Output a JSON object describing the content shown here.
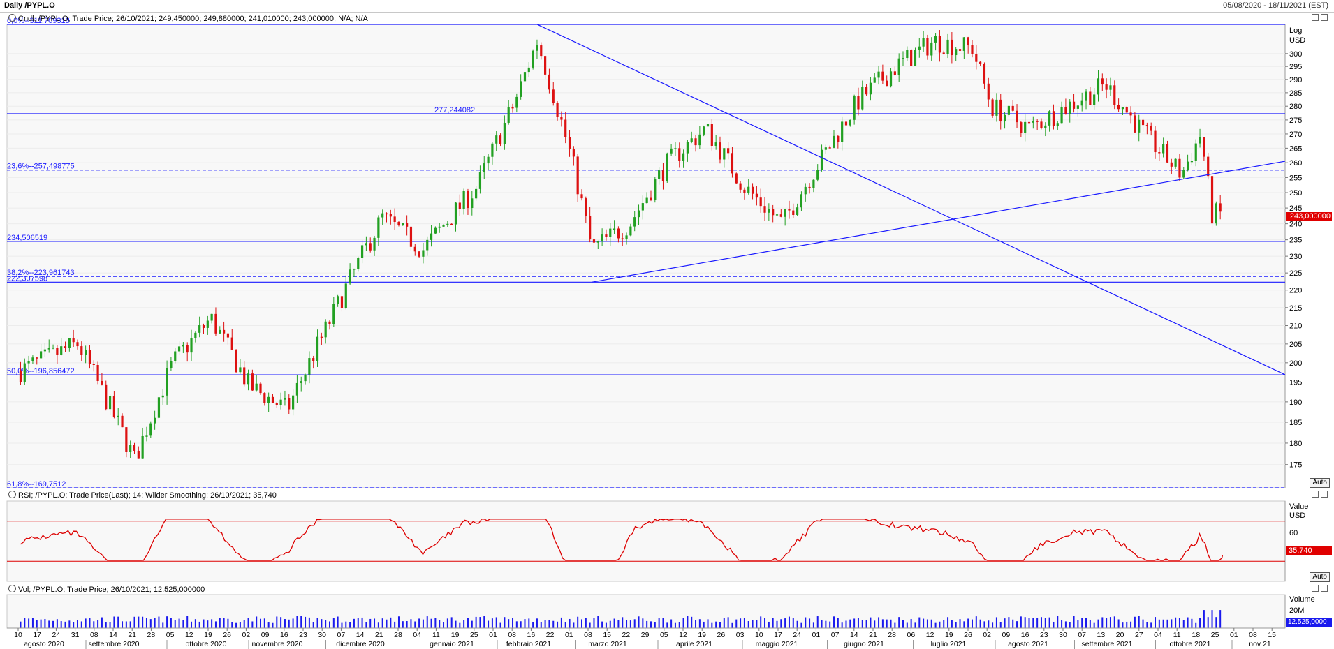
{
  "header": {
    "title": "Daily /PYPL.O",
    "date_range": "05/08/2020 - 18/11/2021 (EST)"
  },
  "price_panel": {
    "legend": "Cndl; /PYPL.O; Trade Price; 26/10/2021; 249,450000; 249,880000; 241,010000; 243,000000; N/A; N/A",
    "scale_label": "Log",
    "currency": "USD",
    "last_value_tag": "243,000000",
    "auto_label": "Auto",
    "y_ticks": [
      175,
      180,
      185,
      190,
      195,
      200,
      205,
      210,
      215,
      220,
      225,
      230,
      235,
      240,
      245,
      250,
      255,
      260,
      265,
      270,
      275,
      280,
      285,
      290,
      295,
      300
    ],
    "horizontal_levels": [
      {
        "value": 311.709318,
        "label": "0,0%--311,709318",
        "style": "solid"
      },
      {
        "value": 277.244082,
        "label": "277,244082",
        "style": "solid"
      },
      {
        "value": 257.498775,
        "label": "23,6%--257,498775",
        "style": "dashed"
      },
      {
        "value": 234.506519,
        "label": "234,506519",
        "style": "solid"
      },
      {
        "value": 223.961743,
        "label": "38,2%--223,961743",
        "style": "dashed"
      },
      {
        "value": 222.307598,
        "label": "222,307598",
        "style": "solid"
      },
      {
        "value": 196.856472,
        "label": "50,0%--196,856472",
        "style": "solid"
      },
      {
        "value": 169.7512,
        "label": "61,8%--169,7512",
        "style": "dashed"
      }
    ]
  },
  "rsi_panel": {
    "legend": "RSI; /PYPL.O; Trade Price(Last);  14; Wilder Smoothing; 26/10/2021; 35,740",
    "value_label": "Value",
    "currency": "USD",
    "tick_label": "60",
    "last_value_tag": "35,740",
    "auto_label": "Auto"
  },
  "volume_panel": {
    "legend": "Vol; /PYPL.O; Trade Price; 26/10/2021; 12.525,000000",
    "value_label": "Volume",
    "tick_label": "20M",
    "last_value_tag": "12.525,0000"
  },
  "time_axis": {
    "day_labels": [
      "10",
      "17",
      "24",
      "31",
      "08",
      "14",
      "21",
      "28",
      "05",
      "12",
      "19",
      "26",
      "02",
      "09",
      "16",
      "23",
      "30",
      "07",
      "14",
      "21",
      "28",
      "04",
      "11",
      "19",
      "25",
      "01",
      "08",
      "16",
      "22",
      "01",
      "08",
      "15",
      "22",
      "29",
      "05",
      "12",
      "19",
      "26",
      "03",
      "10",
      "17",
      "24",
      "01",
      "07",
      "14",
      "21",
      "28",
      "06",
      "12",
      "19",
      "26",
      "02",
      "09",
      "16",
      "23",
      "30",
      "07",
      "13",
      "20",
      "27",
      "04",
      "11",
      "18",
      "25",
      "01",
      "08",
      "15"
    ],
    "month_labels": [
      "agosto 2020",
      "settembre 2020",
      "ottobre 2020",
      "novembre 2020",
      "dicembre 2020",
      "gennaio 2021",
      "febbraio 2021",
      "marzo 2021",
      "aprile 2021",
      "maggio 2021",
      "giugno 2021",
      "luglio 2021",
      "agosto 2021",
      "settembre 2021",
      "ottobre 2021",
      "nov 21"
    ]
  },
  "colors": {
    "up": "#22a022",
    "down": "#dd1111",
    "level_line": "#1a1aff",
    "rsi_line": "#dd0000",
    "volume_bar": "#1a1aee",
    "tag_red": "#e00000",
    "tag_blue": "#1a1aee"
  },
  "chart_data": [
    {
      "type": "candlestick",
      "title": "Daily /PYPL.O",
      "y_scale": "log",
      "ylim": [
        169.75,
        311.71
      ],
      "x": [
        "2020-08-10",
        "2020-08-31",
        "2020-09-21",
        "2020-10-05",
        "2020-10-19",
        "2020-11-02",
        "2020-11-16",
        "2020-12-01",
        "2020-12-21",
        "2021-01-05",
        "2021-01-25",
        "2021-02-08",
        "2021-02-16",
        "2021-03-01",
        "2021-03-08",
        "2021-03-22",
        "2021-04-05",
        "2021-04-19",
        "2021-05-03",
        "2021-05-17",
        "2021-06-01",
        "2021-06-14",
        "2021-06-28",
        "2021-07-12",
        "2021-07-26",
        "2021-08-02",
        "2021-08-16",
        "2021-08-30",
        "2021-09-13",
        "2021-09-27",
        "2021-10-11",
        "2021-10-18",
        "2021-10-22",
        "2021-10-26"
      ],
      "close": [
        198,
        205,
        176,
        200,
        212,
        194,
        188,
        210,
        242,
        232,
        252,
        282,
        305,
        260,
        232,
        240,
        260,
        272,
        252,
        240,
        262,
        282,
        295,
        305,
        302,
        280,
        272,
        280,
        288,
        270,
        256,
        270,
        243,
        243
      ],
      "trendlines": [
        {
          "from": {
            "x": "2021-02-16",
            "y": 311.7
          },
          "to": {
            "x": "2021-11-18",
            "y": 196.9
          }
        },
        {
          "from": {
            "x": "2021-03-08",
            "y": 222.3
          },
          "to": {
            "x": "2021-11-18",
            "y": 260.5
          }
        }
      ],
      "last": {
        "date": "26/10/2021",
        "open": 249.45,
        "high": 249.88,
        "low": 241.01,
        "close": 243.0
      }
    },
    {
      "type": "line",
      "title": "RSI",
      "period": 14,
      "levels": [
        30,
        70
      ],
      "last": 35.74
    },
    {
      "type": "bar",
      "title": "Vol",
      "last": 12525000
    }
  ]
}
